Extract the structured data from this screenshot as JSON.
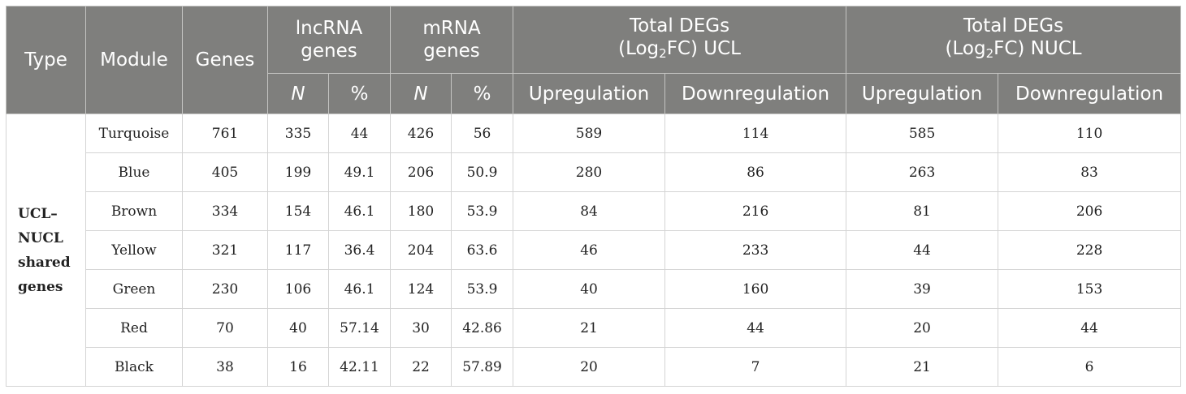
{
  "headers": {
    "type": "Type",
    "module": "Module",
    "genes": "Genes",
    "lncrna_line1": "lncRNA",
    "lncrna_line2": "genes",
    "mrna_line1": "mRNA",
    "mrna_line2": "genes",
    "ucl_line1": "Total DEGs",
    "ucl_pre": "(Log",
    "ucl_sub": "2",
    "ucl_post": "FC) UCL",
    "nucl_line1": "Total DEGs",
    "nucl_pre": "(Log",
    "nucl_sub": "2",
    "nucl_post": "FC) NUCL",
    "n": "N",
    "pct": "%",
    "up": "Upregulation",
    "down": "Downregulation"
  },
  "type_label": {
    "line1": "UCL–",
    "line2": "NUCL",
    "line3": "shared",
    "line4": "genes"
  },
  "rows": [
    {
      "module": "Turquoise",
      "genes": "761",
      "lnc_n": "335",
      "lnc_pct": "44",
      "m_n": "426",
      "m_pct": "56",
      "ucl_up": "589",
      "ucl_down": "114",
      "nucl_up": "585",
      "nucl_down": "110"
    },
    {
      "module": "Blue",
      "genes": "405",
      "lnc_n": "199",
      "lnc_pct": "49.1",
      "m_n": "206",
      "m_pct": "50.9",
      "ucl_up": "280",
      "ucl_down": "86",
      "nucl_up": "263",
      "nucl_down": "83"
    },
    {
      "module": "Brown",
      "genes": "334",
      "lnc_n": "154",
      "lnc_pct": "46.1",
      "m_n": "180",
      "m_pct": "53.9",
      "ucl_up": "84",
      "ucl_down": "216",
      "nucl_up": "81",
      "nucl_down": "206"
    },
    {
      "module": "Yellow",
      "genes": "321",
      "lnc_n": "117",
      "lnc_pct": "36.4",
      "m_n": "204",
      "m_pct": "63.6",
      "ucl_up": "46",
      "ucl_down": "233",
      "nucl_up": "44",
      "nucl_down": "228"
    },
    {
      "module": "Green",
      "genes": "230",
      "lnc_n": "106",
      "lnc_pct": "46.1",
      "m_n": "124",
      "m_pct": "53.9",
      "ucl_up": "40",
      "ucl_down": "160",
      "nucl_up": "39",
      "nucl_down": "153"
    },
    {
      "module": "Red",
      "genes": "70",
      "lnc_n": "40",
      "lnc_pct": "57.14",
      "m_n": "30",
      "m_pct": "42.86",
      "ucl_up": "21",
      "ucl_down": "44",
      "nucl_up": "20",
      "nucl_down": "44"
    },
    {
      "module": "Black",
      "genes": "38",
      "lnc_n": "16",
      "lnc_pct": "42.11",
      "m_n": "22",
      "m_pct": "57.89",
      "ucl_up": "20",
      "ucl_down": "7",
      "nucl_up": "21",
      "nucl_down": "6"
    }
  ]
}
